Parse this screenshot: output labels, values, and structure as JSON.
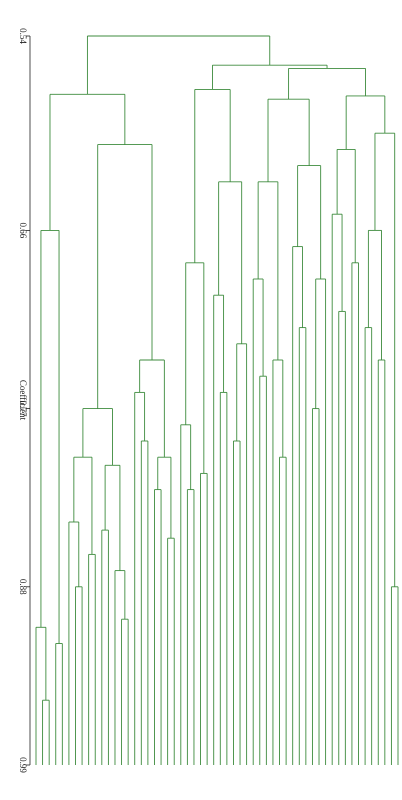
{
  "chart_data": {
    "type": "dendrogram",
    "y_label": "Coefficient",
    "ylim": [
      0.54,
      0.99
    ],
    "yticks": [
      0.54,
      0.66,
      0.77,
      0.88,
      0.99
    ],
    "color": "#3d8b3d",
    "tree": {
      "h": 0.54,
      "c": [
        {
          "h": 0.576,
          "c": [
            {
              "h": 0.66,
              "c": [
                {
                  "h": 0.905,
                  "c": [
                    null,
                    {
                      "h": 0.95,
                      "c": [
                        null,
                        null
                      ]
                    }
                  ]
                },
                {
                  "h": 0.915,
                  "c": [
                    null,
                    null
                  ]
                }
              ]
            },
            {
              "h": 0.607,
              "c": [
                {
                  "h": 0.77,
                  "c": [
                    {
                      "h": 0.8,
                      "c": [
                        {
                          "h": 0.84,
                          "c": [
                            null,
                            {
                              "h": 0.88,
                              "c": [
                                null,
                                null
                              ]
                            }
                          ]
                        },
                        {
                          "h": 0.86,
                          "c": [
                            null,
                            null
                          ]
                        }
                      ]
                    },
                    {
                      "h": 0.805,
                      "c": [
                        {
                          "h": 0.845,
                          "c": [
                            null,
                            null
                          ]
                        },
                        {
                          "h": 0.87,
                          "c": [
                            null,
                            {
                              "h": 0.9,
                              "c": [
                                null,
                                null
                              ]
                            }
                          ]
                        }
                      ]
                    }
                  ]
                },
                {
                  "h": 0.74,
                  "c": [
                    {
                      "h": 0.76,
                      "c": [
                        null,
                        {
                          "h": 0.79,
                          "c": [
                            null,
                            null
                          ]
                        }
                      ]
                    },
                    {
                      "h": 0.8,
                      "c": [
                        {
                          "h": 0.82,
                          "c": [
                            null,
                            null
                          ]
                        },
                        {
                          "h": 0.85,
                          "c": [
                            null,
                            null
                          ]
                        }
                      ]
                    }
                  ]
                }
              ]
            }
          ]
        },
        {
          "h": 0.558,
          "c": [
            {
              "h": 0.573,
              "c": [
                {
                  "h": 0.68,
                  "c": [
                    {
                      "h": 0.78,
                      "c": [
                        null,
                        {
                          "h": 0.82,
                          "c": [
                            null,
                            null
                          ]
                        }
                      ]
                    },
                    {
                      "h": 0.81,
                      "c": [
                        null,
                        null
                      ]
                    }
                  ]
                },
                {
                  "h": 0.63,
                  "c": [
                    {
                      "h": 0.7,
                      "c": [
                        null,
                        {
                          "h": 0.76,
                          "c": [
                            null,
                            null
                          ]
                        }
                      ]
                    },
                    {
                      "h": 0.73,
                      "c": [
                        {
                          "h": 0.79,
                          "c": [
                            null,
                            null
                          ]
                        },
                        null
                      ]
                    }
                  ]
                }
              ]
            },
            {
              "h": 0.56,
              "c": [
                {
                  "h": 0.579,
                  "c": [
                    {
                      "h": 0.63,
                      "c": [
                        {
                          "h": 0.69,
                          "c": [
                            null,
                            {
                              "h": 0.75,
                              "c": [
                                null,
                                null
                              ]
                            }
                          ]
                        },
                        {
                          "h": 0.74,
                          "c": [
                            null,
                            {
                              "h": 0.8,
                              "c": [
                                null,
                                null
                              ]
                            }
                          ]
                        }
                      ]
                    },
                    {
                      "h": 0.62,
                      "c": [
                        {
                          "h": 0.67,
                          "c": [
                            null,
                            {
                              "h": 0.72,
                              "c": [
                                null,
                                null
                              ]
                            }
                          ]
                        },
                        {
                          "h": 0.69,
                          "c": [
                            {
                              "h": 0.77,
                              "c": [
                                null,
                                null
                              ]
                            },
                            null
                          ]
                        }
                      ]
                    }
                  ]
                },
                {
                  "h": 0.577,
                  "c": [
                    {
                      "h": 0.61,
                      "c": [
                        {
                          "h": 0.65,
                          "c": [
                            null,
                            {
                              "h": 0.71,
                              "c": [
                                null,
                                null
                              ]
                            }
                          ]
                        },
                        {
                          "h": 0.68,
                          "c": [
                            null,
                            null
                          ]
                        }
                      ]
                    },
                    {
                      "h": 0.6,
                      "c": [
                        {
                          "h": 0.66,
                          "c": [
                            {
                              "h": 0.72,
                              "c": [
                                null,
                                null
                              ]
                            },
                            {
                              "h": 0.74,
                              "c": [
                                null,
                                null
                              ]
                            }
                          ]
                        },
                        {
                          "h": 0.88,
                          "c": [
                            null,
                            null
                          ]
                        }
                      ]
                    }
                  ]
                }
              ]
            }
          ]
        }
      ]
    }
  }
}
